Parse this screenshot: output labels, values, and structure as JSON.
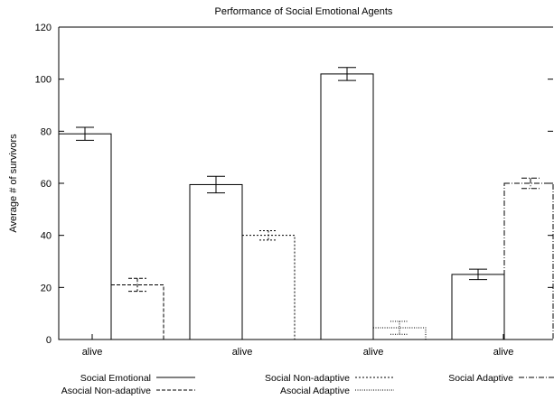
{
  "chart_data": {
    "type": "bar",
    "title": "Performance of Social Emotional Agents",
    "xlabel": "",
    "ylabel": "Average # of survivors",
    "ylim": [
      0,
      120
    ],
    "yticks": [
      "0",
      "20",
      "40",
      "60",
      "80",
      "100",
      "120"
    ],
    "categories": [
      "alive",
      "alive",
      "alive",
      "alive"
    ],
    "bars": [
      {
        "series": "Social Emotional",
        "group": 0,
        "value": 79,
        "err": 2.5,
        "style": "solid"
      },
      {
        "series": "Asocial Non-adaptive",
        "group": 0,
        "value": 21,
        "err": 2.5,
        "style": "dashed"
      },
      {
        "series": "Social Emotional",
        "group": 1,
        "value": 59.5,
        "err": 3.2,
        "style": "solid"
      },
      {
        "series": "Social Non-adaptive",
        "group": 1,
        "value": 40,
        "err": 1.8,
        "style": "dotted"
      },
      {
        "series": "Social Emotional",
        "group": 2,
        "value": 102,
        "err": 2.5,
        "style": "solid"
      },
      {
        "series": "Asocial Adaptive",
        "group": 2,
        "value": 4.5,
        "err": 2.5,
        "style": "finedot"
      },
      {
        "series": "Social Emotional",
        "group": 3,
        "value": 25,
        "err": 2.0,
        "style": "solid"
      },
      {
        "series": "Social Adaptive",
        "group": 3,
        "value": 60,
        "err": 2.0,
        "style": "dashdot"
      }
    ],
    "legend": [
      {
        "name": "Social Emotional",
        "style": "solid"
      },
      {
        "name": "Asocial Non-adaptive",
        "style": "dashed"
      },
      {
        "name": "Social Non-adaptive",
        "style": "dotted"
      },
      {
        "name": "Asocial Adaptive",
        "style": "finedot"
      },
      {
        "name": "Social Adaptive",
        "style": "dashdot"
      }
    ],
    "legend_position": "bottom",
    "grid": false
  }
}
